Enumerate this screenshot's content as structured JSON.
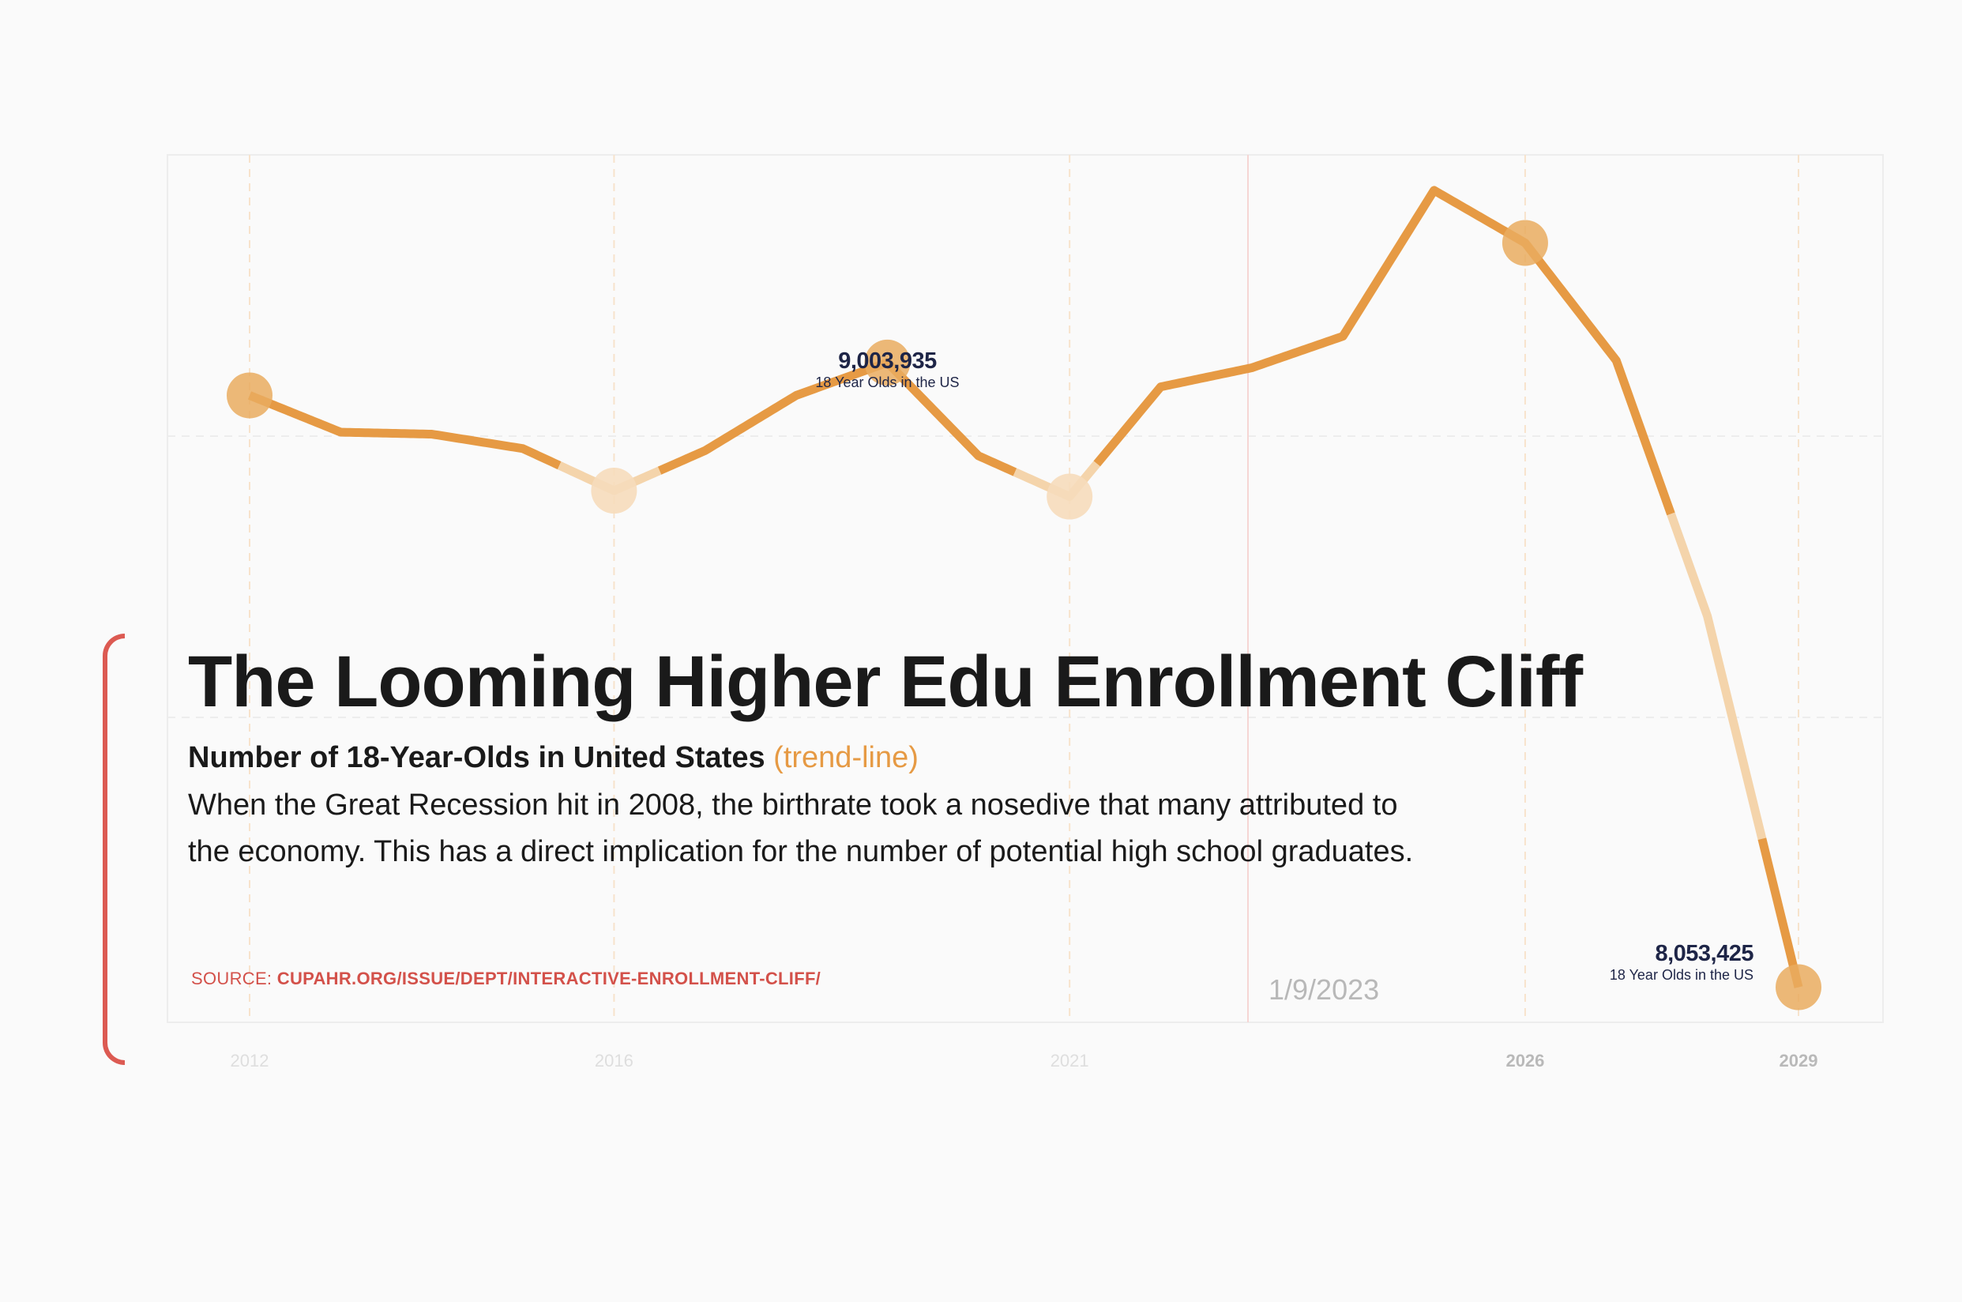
{
  "title": "The Looming Higher Edu Enrollment Cliff",
  "subtitle": {
    "bold": "Number of 18-Year-Olds in United States",
    "accent": "(trend-line)"
  },
  "description": "When the Great Recession hit in 2008, the birthrate took a nosedive that many attributed to the economy. This has a direct implication for the number of potential high school graduates.",
  "source": {
    "prefix": "SOURCE: ",
    "link": "CUPAHR.ORG/ISSUE/DEPT/INTERACTIVE-ENROLLMENT-CLIFF/"
  },
  "date": "1/9/2023",
  "colors": {
    "line": "#e69a44",
    "line_faded": "#f4d4ab",
    "marker": "#e9ac5f",
    "marker_faded": "#f6dcbb",
    "label_value": "#1e2547",
    "bracket": "#dc5a52",
    "grid": "#ededed",
    "grid_vertical": "#f7e3cc",
    "today_line": "#f6d6d4"
  },
  "chart_data": {
    "type": "line",
    "x": [
      2012,
      2013,
      2014,
      2015,
      2016,
      2017,
      2018,
      2019,
      2020,
      2021,
      2022,
      2023,
      2024,
      2025,
      2026,
      2027,
      2028,
      2029
    ],
    "series": [
      {
        "values": [
          8954000,
          8898000,
          8895000,
          8873000,
          8809000,
          8870000,
          8954000,
          9003935,
          8862000,
          8800000,
          8967000,
          8996000,
          9044000,
          9266000,
          9186000,
          9007000,
          8618000,
          8053425
        ]
      }
    ],
    "x_ticks": [
      "2012",
      "2016",
      "2021",
      "2026",
      "2029"
    ],
    "x_tick_values": [
      2012,
      2016,
      2021,
      2026,
      2029
    ],
    "ylim": [
      8000000,
      9320000
    ],
    "grid": true,
    "markers": [
      2012,
      2016,
      2019,
      2021,
      2026,
      2029
    ],
    "faded_markers": [
      2016,
      2021
    ],
    "annotations": [
      {
        "x": 2019,
        "value_label": "9,003,935",
        "text": "18 Year Olds in the US"
      },
      {
        "x": 2029,
        "value_label": "8,053,425",
        "text": "18 Year Olds in the US"
      }
    ]
  }
}
